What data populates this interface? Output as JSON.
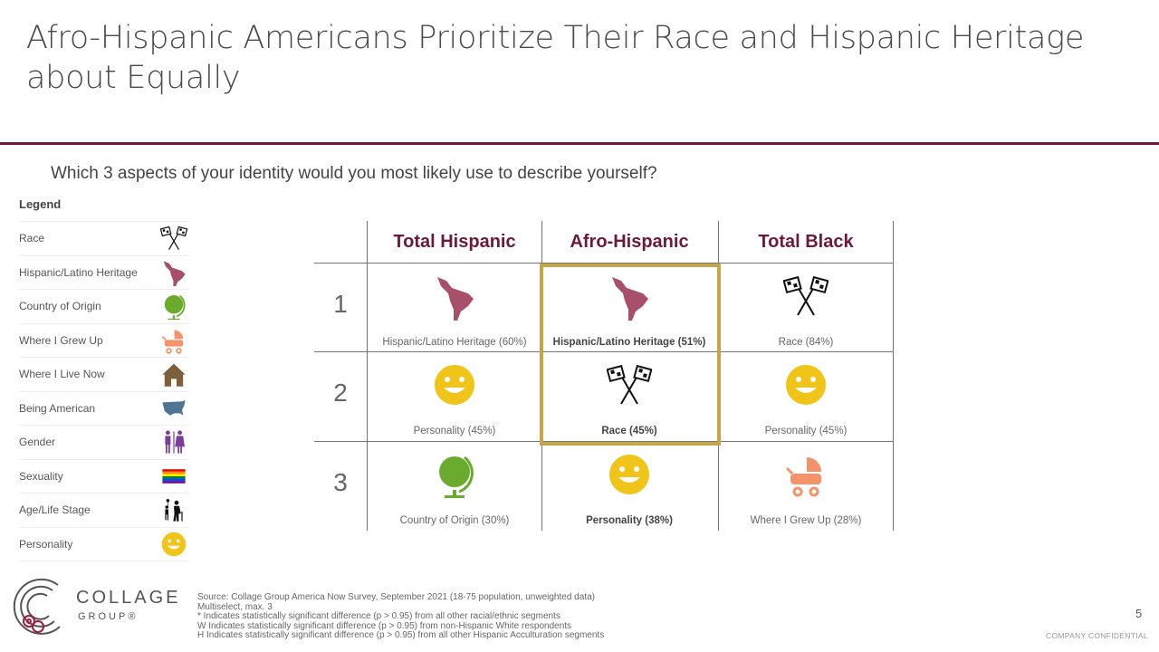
{
  "title": "Afro-Hispanic Americans Prioritize Their Race and Hispanic Heritage about Equally",
  "question": "Which 3 aspects of your identity would you most likely use to describe yourself?",
  "legend": {
    "title": "Legend",
    "items": [
      {
        "label": "Race",
        "icon": "race-flags"
      },
      {
        "label": "Hispanic/Latino Heritage",
        "icon": "latin-america-map"
      },
      {
        "label": "Country of Origin",
        "icon": "globe"
      },
      {
        "label": "Where I Grew Up",
        "icon": "stroller"
      },
      {
        "label": "Where I Live Now",
        "icon": "house"
      },
      {
        "label": "Being American",
        "icon": "usa-map"
      },
      {
        "label": "Gender",
        "icon": "gender"
      },
      {
        "label": "Sexuality",
        "icon": "rainbow-flag"
      },
      {
        "label": "Age/Life Stage",
        "icon": "age"
      },
      {
        "label": "Personality",
        "icon": "smiley"
      }
    ]
  },
  "colors": {
    "accent": "#6d1a36",
    "highlight": "#c4a548",
    "heritage": "#a8506a",
    "smiley": "#f0c419",
    "globe": "#6aab2e",
    "stroller": "#f4936a",
    "house": "#7d5f3a",
    "usa": "#4f7592",
    "gender": "#7a3d9a"
  },
  "table": {
    "columns": [
      "Total Hispanic",
      "Afro-Hispanic",
      "Total Black"
    ],
    "ranks": [
      "1",
      "2",
      "3"
    ],
    "rows": [
      [
        {
          "label": "Hispanic/Latino Heritage (60%)",
          "icon": "latin-america-map",
          "bold": false
        },
        {
          "label": "Hispanic/Latino Heritage  (51%)",
          "icon": "latin-america-map",
          "bold": true
        },
        {
          "label": "Race (84%)",
          "icon": "race-flags",
          "bold": false
        }
      ],
      [
        {
          "label": "Personality (45%)",
          "icon": "smiley",
          "bold": false
        },
        {
          "label": "Race (45%)",
          "icon": "race-flags",
          "bold": true
        },
        {
          "label": "Personality (45%)",
          "icon": "smiley",
          "bold": false
        }
      ],
      [
        {
          "label": "Country of Origin (30%)",
          "icon": "globe",
          "bold": false
        },
        {
          "label": "Personality (38%)",
          "icon": "smiley",
          "bold": true
        },
        {
          "label": "Where I Grew Up (28%)",
          "icon": "stroller",
          "bold": false
        }
      ]
    ],
    "highlighted_column": "Afro-Hispanic"
  },
  "logo": {
    "line1": "COLLAGE",
    "line2": "GROUP®"
  },
  "source": [
    "Source: Collage Group America Now Survey, September 2021 (18-75 population, unweighted data)",
    "Multiselect, max. 3",
    "* Indicates statistically significant difference (p > 0.95) from all other racial/ethnic segments",
    "W Indicates statistically significant difference (p > 0.95) from non-Hispanic White respondents",
    "H Indicates statistically significant difference (p > 0.95) from all other Hispanic Acculturation segments"
  ],
  "page_number": "5",
  "confidential": "COMPANY  CONFIDENTIAL"
}
